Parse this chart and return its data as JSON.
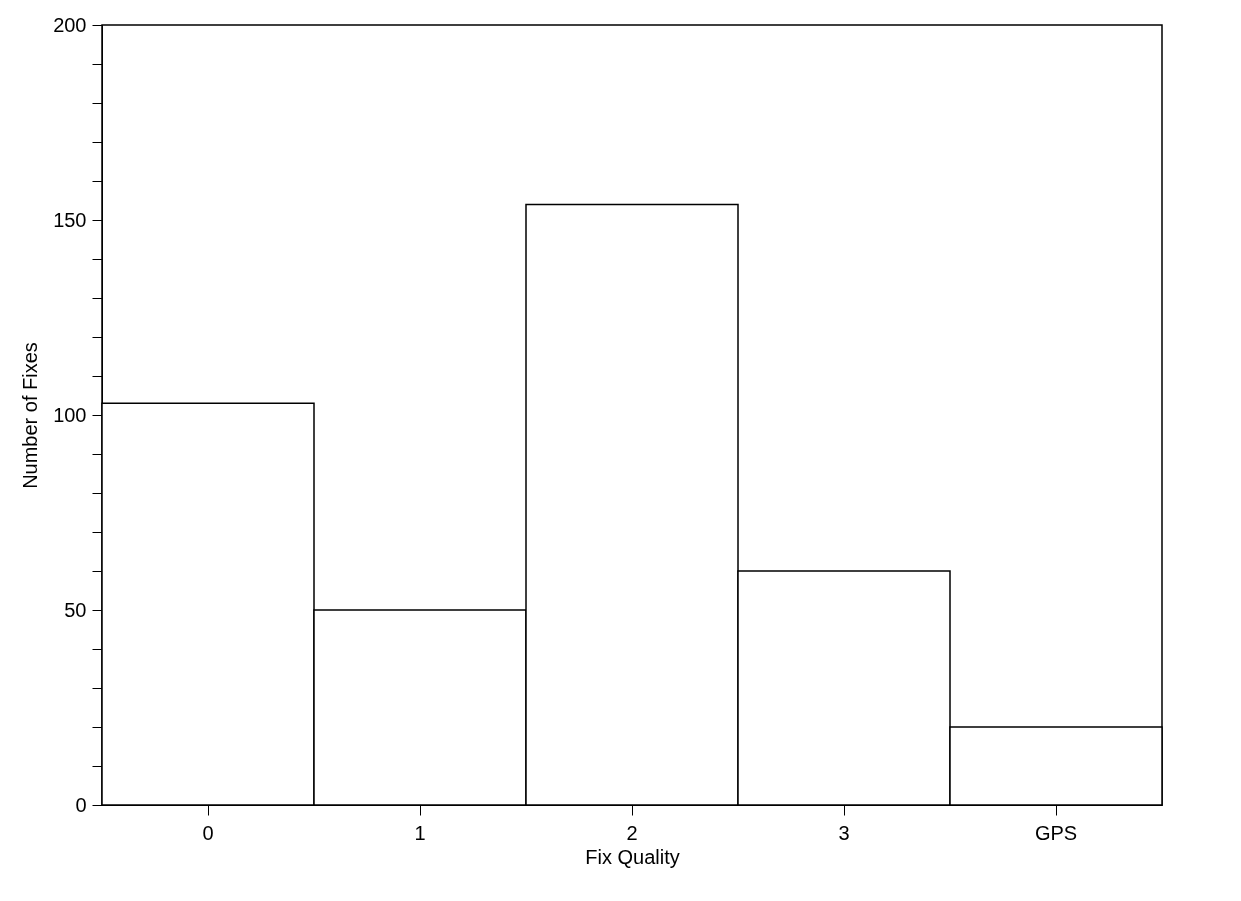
{
  "chart_data": {
    "type": "bar",
    "xlabel": "Fix Quality",
    "ylabel": "Number of Fixes",
    "categories": [
      "0",
      "1",
      "2",
      "3",
      "GPS"
    ],
    "values": [
      103,
      50,
      154,
      60,
      20
    ],
    "color": "#ffffff",
    "ylim": [
      0,
      200
    ],
    "yticks": [
      0,
      {
        "value": 10,
        "label": null
      },
      {
        "value": 20,
        "label": null
      },
      {
        "value": 30,
        "label": null
      },
      {
        "value": 40,
        "label": null
      },
      50,
      {
        "value": 60,
        "label": null
      },
      {
        "value": 70,
        "label": null
      },
      {
        "value": 80,
        "label": null
      },
      {
        "value": 90,
        "label": null
      },
      100,
      {
        "value": 110,
        "label": null
      },
      {
        "value": 120,
        "label": null
      },
      {
        "value": 130,
        "label": null
      },
      {
        "value": 140,
        "label": null
      },
      150,
      {
        "value": 160,
        "label": null
      },
      {
        "value": 170,
        "label": null
      },
      {
        "value": 180,
        "label": null
      },
      {
        "value": 190,
        "label": null
      },
      200
    ]
  }
}
